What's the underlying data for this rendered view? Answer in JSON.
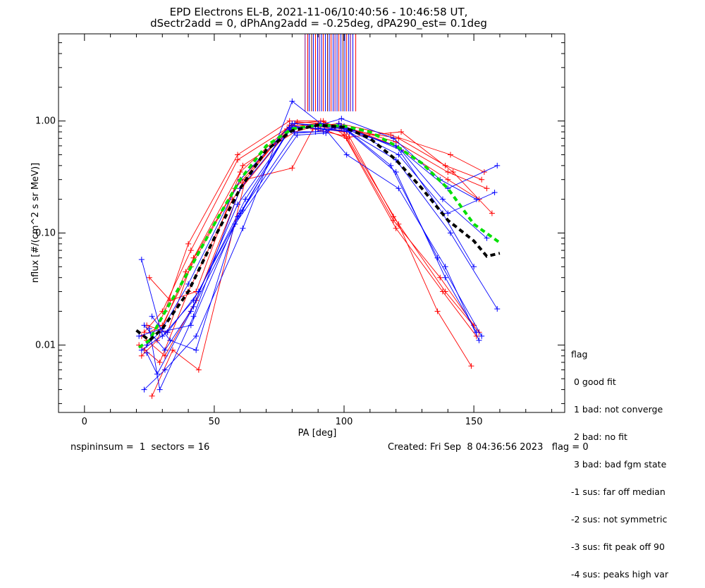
{
  "chart_data": {
    "type": "line",
    "title": "EPD Electrons EL-B, 2021-11-06/10:40:56 - 10:46:58 UT,",
    "subtitle": "dSectr2add = 0, dPhAng2add = -0.25deg, dPA290_est=   0.1deg",
    "xlabel": "PA [deg]",
    "ylabel": "nflux [#/(cm^2 s sr MeV)]",
    "xlim": [
      -10,
      185
    ],
    "ylim": [
      0.0025,
      6.0
    ],
    "yscale": "log",
    "x_ticks": [
      0,
      50,
      100,
      150
    ],
    "x_tick_labels": [
      "0",
      "50",
      "100",
      "150"
    ],
    "y_ticks": [
      0.01,
      0.1,
      1.0
    ],
    "y_tick_labels": [
      "0.01",
      "0.10",
      "1.00"
    ],
    "grid": false,
    "colors": {
      "red": "#ff0000",
      "blue": "#0000ff",
      "green": "#00e000",
      "black": "#000000",
      "dark": "#800000"
    },
    "series": [
      {
        "color": "red",
        "x": [
          22,
          30,
          41,
          60,
          80,
          90,
          100,
          120,
          140,
          152
        ],
        "y": [
          0.012,
          0.015,
          0.05,
          0.3,
          0.9,
          0.95,
          0.9,
          0.6,
          0.3,
          0.2
        ]
      },
      {
        "color": "red",
        "x": [
          23,
          31,
          40,
          59,
          79,
          91,
          99,
          121,
          139,
          153
        ],
        "y": [
          0.009,
          0.02,
          0.08,
          0.5,
          1.0,
          1.0,
          0.85,
          0.7,
          0.4,
          0.3
        ]
      },
      {
        "color": "red",
        "x": [
          25,
          33,
          43,
          61,
          81,
          89,
          101,
          119,
          137,
          150
        ],
        "y": [
          0.04,
          0.025,
          0.03,
          0.4,
          0.8,
          0.9,
          0.7,
          0.13,
          0.04,
          0.015
        ]
      },
      {
        "color": "red",
        "x": [
          22,
          28,
          39,
          58,
          80,
          92,
          100,
          120,
          138,
          151
        ],
        "y": [
          0.008,
          0.011,
          0.045,
          0.25,
          0.95,
          1.0,
          0.75,
          0.11,
          0.03,
          0.012
        ]
      },
      {
        "color": "red",
        "x": [
          24,
          32,
          42,
          60,
          78,
          90,
          98,
          118,
          141,
          154
        ],
        "y": [
          0.015,
          0.013,
          0.06,
          0.35,
          0.85,
          0.9,
          0.95,
          0.75,
          0.5,
          0.35
        ]
      },
      {
        "color": "red",
        "x": [
          21,
          29,
          40,
          57,
          80,
          91,
          100,
          121,
          136,
          149
        ],
        "y": [
          0.01,
          0.007,
          0.03,
          0.2,
          0.9,
          0.85,
          0.8,
          0.12,
          0.02,
          0.0065
        ]
      },
      {
        "color": "red",
        "x": [
          26,
          34,
          44,
          62,
          80,
          88,
          102,
          122,
          142,
          157
        ],
        "y": [
          0.0035,
          0.009,
          0.006,
          0.3,
          0.38,
          0.85,
          0.72,
          0.8,
          0.35,
          0.15
        ]
      },
      {
        "color": "red",
        "x": [
          23,
          30,
          41,
          59,
          82,
          93,
          99,
          120,
          140,
          155
        ],
        "y": [
          0.013,
          0.02,
          0.07,
          0.45,
          0.98,
          0.95,
          0.9,
          0.65,
          0.35,
          0.25
        ]
      },
      {
        "color": "red",
        "x": [
          24,
          31,
          43,
          61,
          79,
          90,
          101,
          119,
          139,
          152
        ],
        "y": [
          0.011,
          0.008,
          0.025,
          0.28,
          0.92,
          0.9,
          0.8,
          0.14,
          0.03,
          0.013
        ]
      },
      {
        "color": "blue",
        "x": [
          22,
          30,
          42,
          60,
          79,
          90,
          100,
          120,
          138,
          150
        ],
        "y": [
          0.058,
          0.012,
          0.025,
          0.15,
          0.85,
          0.9,
          0.85,
          0.6,
          0.15,
          0.05
        ]
      },
      {
        "color": "blue",
        "x": [
          23,
          31,
          43,
          61,
          80,
          91,
          101,
          121,
          139,
          152
        ],
        "y": [
          0.004,
          0.006,
          0.012,
          0.11,
          1.5,
          0.95,
          0.5,
          0.25,
          0.05,
          0.011
        ]
      },
      {
        "color": "blue",
        "x": [
          24,
          28,
          41,
          59,
          81,
          89,
          99,
          119,
          137,
          151
        ],
        "y": [
          0.0085,
          0.0055,
          0.02,
          0.18,
          0.95,
          0.9,
          1.05,
          0.7,
          0.3,
          0.2
        ]
      },
      {
        "color": "blue",
        "x": [
          25,
          29,
          42,
          60,
          78,
          92,
          100,
          122,
          140,
          159
        ],
        "y": [
          0.014,
          0.004,
          0.018,
          0.25,
          0.8,
          0.8,
          0.9,
          0.55,
          0.25,
          0.4
        ]
      },
      {
        "color": "blue",
        "x": [
          22,
          32,
          44,
          62,
          80,
          90,
          102,
          120,
          141,
          159
        ],
        "y": [
          0.009,
          0.013,
          0.03,
          0.2,
          0.9,
          0.85,
          0.8,
          0.45,
          0.1,
          0.021
        ]
      },
      {
        "color": "blue",
        "x": [
          26,
          33,
          43,
          58,
          82,
          93,
          98,
          118,
          136,
          153
        ],
        "y": [
          0.018,
          0.011,
          0.009,
          0.12,
          0.75,
          0.78,
          0.95,
          0.4,
          0.06,
          0.012
        ]
      },
      {
        "color": "blue",
        "x": [
          21,
          30,
          40,
          60,
          80,
          91,
          100,
          121,
          140,
          158
        ],
        "y": [
          0.012,
          0.014,
          0.035,
          0.3,
          0.95,
          0.92,
          0.88,
          0.5,
          0.15,
          0.23
        ]
      },
      {
        "color": "blue",
        "x": [
          23,
          31,
          42,
          61,
          79,
          90,
          101,
          120,
          139,
          151
        ],
        "y": [
          0.015,
          0.009,
          0.022,
          0.16,
          0.88,
          0.86,
          0.82,
          0.35,
          0.04,
          0.013
        ]
      },
      {
        "color": "blue",
        "x": [
          24,
          29,
          41,
          59,
          81,
          89,
          99,
          121,
          138,
          155
        ],
        "y": [
          0.01,
          0.013,
          0.015,
          0.14,
          0.78,
          0.8,
          0.9,
          0.58,
          0.2,
          0.09
        ]
      },
      {
        "color": "green",
        "dashed": true,
        "thick": true,
        "x": [
          21,
          25,
          30,
          40,
          50,
          60,
          70,
          80,
          90,
          100,
          110,
          120,
          130,
          140,
          150,
          160
        ],
        "y": [
          0.0095,
          0.011,
          0.018,
          0.045,
          0.12,
          0.3,
          0.6,
          0.85,
          0.92,
          0.9,
          0.8,
          0.6,
          0.42,
          0.25,
          0.12,
          0.082
        ]
      },
      {
        "color": "black",
        "dashed": true,
        "thick": true,
        "x": [
          20,
          25,
          30,
          40,
          50,
          60,
          70,
          80,
          90,
          100,
          110,
          120,
          130,
          140,
          150,
          155,
          160
        ],
        "y": [
          0.0135,
          0.011,
          0.014,
          0.03,
          0.09,
          0.25,
          0.55,
          0.82,
          0.92,
          0.88,
          0.7,
          0.45,
          0.25,
          0.13,
          0.085,
          0.062,
          0.066
        ]
      }
    ],
    "sector_markers": {
      "x": [
        85,
        86,
        86.6,
        87.5,
        88.2,
        89,
        89.8,
        90.5,
        91.3,
        92,
        92.8,
        93.6,
        94.3,
        95,
        95.8,
        96.5,
        97.3,
        98,
        98.8,
        99.6,
        100.3,
        101,
        101.8,
        102.5,
        103.4,
        104.5
      ],
      "colors": [
        "#800080",
        "#ff0000",
        "#0000ff",
        "#800000",
        "#0000ff",
        "#ff0000",
        "#0000ff",
        "#800080",
        "#0000ff",
        "#ff0000",
        "#0000ff",
        "#800000",
        "#0000ff",
        "#ff0000",
        "#0000ff",
        "#800080",
        "#0000ff",
        "#ff0000",
        "#0000ff",
        "#800000",
        "#0000ff",
        "#ff0000",
        "#0000ff",
        "#800080",
        "#0000ff",
        "#ff0000"
      ],
      "y_top": 6.0,
      "y_bottom": 1.22
    }
  },
  "legend": {
    "title": "flag",
    "items": [
      " 0 good fit",
      " 1 bad: not converge",
      " 2 bad: no fit",
      " 3 bad: bad fgm state",
      "-1 sus: far off median",
      "-2 sus: not symmetric",
      "-3 sus: fit peak off 90",
      "-4 sus: peaks high var"
    ]
  },
  "footer": {
    "left": "nspininsum =  1  sectors = 16",
    "right": "Created: Fri Sep  8 04:36:56 2023   flag = 0"
  }
}
